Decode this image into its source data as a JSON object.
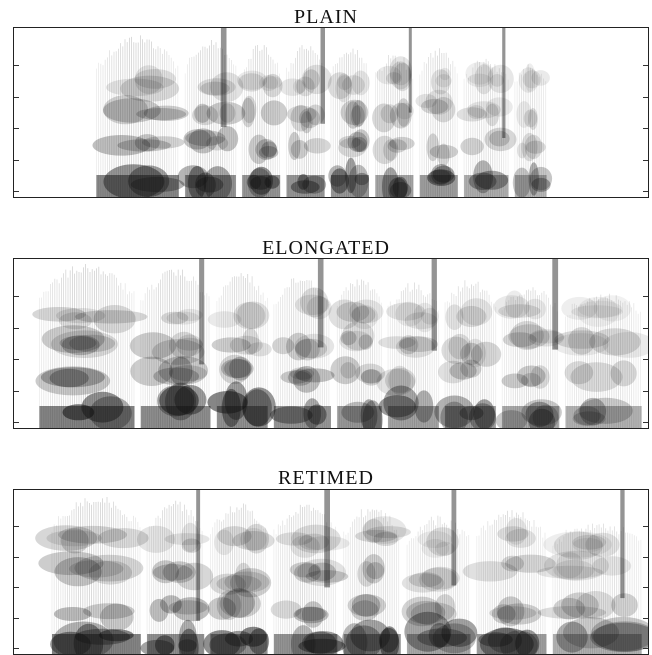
{
  "panels": [
    {
      "title": "PLAIN",
      "segments": [
        [
          0.13,
          0.26,
          0.92
        ],
        [
          0.27,
          0.35,
          0.86
        ],
        [
          0.36,
          0.42,
          0.82
        ],
        [
          0.43,
          0.49,
          0.8
        ],
        [
          0.5,
          0.56,
          0.78
        ],
        [
          0.57,
          0.63,
          0.7
        ],
        [
          0.64,
          0.7,
          0.75
        ],
        [
          0.71,
          0.78,
          0.62
        ],
        [
          0.79,
          0.84,
          0.55
        ]
      ]
    },
    {
      "title": "ELONGATED",
      "segments": [
        [
          0.04,
          0.19,
          0.95
        ],
        [
          0.2,
          0.31,
          0.88
        ],
        [
          0.32,
          0.4,
          0.84
        ],
        [
          0.41,
          0.5,
          0.8
        ],
        [
          0.51,
          0.58,
          0.78
        ],
        [
          0.59,
          0.67,
          0.7
        ],
        [
          0.68,
          0.76,
          0.74
        ],
        [
          0.77,
          0.86,
          0.66
        ],
        [
          0.87,
          0.99,
          0.58
        ]
      ]
    },
    {
      "title": "RETIMED",
      "segments": [
        [
          0.06,
          0.2,
          0.94
        ],
        [
          0.21,
          0.3,
          0.86
        ],
        [
          0.31,
          0.4,
          0.84
        ],
        [
          0.41,
          0.51,
          0.82
        ],
        [
          0.52,
          0.61,
          0.8
        ],
        [
          0.62,
          0.72,
          0.66
        ],
        [
          0.73,
          0.84,
          0.74
        ],
        [
          0.85,
          0.99,
          0.6
        ]
      ]
    }
  ],
  "colors": {
    "ink": "#111111",
    "frame": "#222222"
  }
}
